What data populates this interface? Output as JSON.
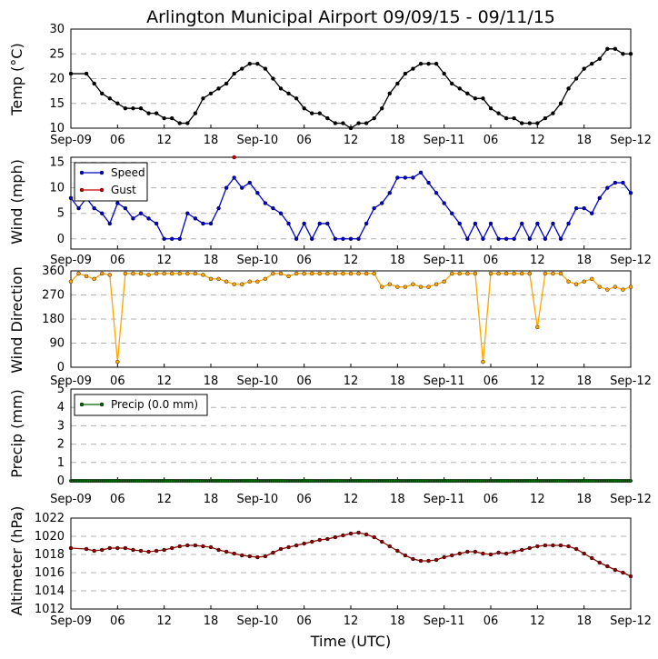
{
  "title": "Arlington Municipal Airport 09/09/15 - 09/11/15",
  "xlabel": "Time (UTC)",
  "x_tick_labels": [
    "Sep-09",
    "06",
    "12",
    "18",
    "Sep-10",
    "06",
    "12",
    "18",
    "Sep-11",
    "06",
    "12",
    "18",
    "Sep-12"
  ],
  "chart_data": [
    {
      "type": "line",
      "ylabel": "Temp ($^\\circ$C)",
      "ylabel_text": "Temp (°C)",
      "ylim": [
        10,
        30
      ],
      "yticks": [
        10,
        15,
        20,
        25,
        30
      ],
      "series": [
        {
          "name": "Temp",
          "color": "#000000",
          "hours": [
            0,
            2,
            3,
            4,
            5,
            6,
            7,
            8,
            9,
            10,
            11,
            12,
            13,
            14,
            15,
            16,
            17,
            18,
            19,
            20,
            21,
            22,
            23,
            24,
            25,
            26,
            27,
            28,
            29,
            30,
            31,
            32,
            33,
            34,
            35,
            36,
            37,
            38,
            39,
            40,
            41,
            42,
            43,
            44,
            45,
            46,
            47,
            48,
            49,
            50,
            51,
            52,
            53,
            54,
            55,
            56,
            57,
            58,
            59,
            60,
            61,
            62,
            63,
            64,
            65,
            66,
            67,
            68,
            69,
            70,
            71,
            72
          ],
          "values": [
            21,
            21,
            19,
            17,
            16,
            15,
            14,
            14,
            14,
            13,
            13,
            12,
            12,
            11,
            11,
            13,
            16,
            17,
            18,
            19,
            21,
            22,
            23,
            23,
            22,
            20,
            18,
            17,
            16,
            14,
            13,
            13,
            12,
            11,
            11,
            10,
            11,
            11,
            12,
            14,
            17,
            19,
            21,
            22,
            23,
            23,
            23,
            21,
            19,
            18,
            17,
            16,
            16,
            14,
            13,
            12,
            12,
            11,
            11,
            11,
            12,
            13,
            15,
            18,
            20,
            22,
            23,
            24,
            26,
            26,
            25,
            25
          ]
        }
      ]
    },
    {
      "type": "line",
      "ylabel": "Wind (mph)",
      "ylim": [
        -2,
        16
      ],
      "yticks": [
        0,
        5,
        10,
        15
      ],
      "legend": "top-left",
      "series": [
        {
          "name": "Speed",
          "color": "#0000cc",
          "hours": [
            0,
            1,
            2,
            3,
            4,
            5,
            6,
            7,
            8,
            9,
            10,
            11,
            12,
            13,
            14,
            15,
            16,
            17,
            18,
            19,
            20,
            21,
            22,
            23,
            24,
            25,
            26,
            27,
            28,
            29,
            30,
            31,
            32,
            33,
            34,
            35,
            36,
            37,
            38,
            39,
            40,
            41,
            42,
            43,
            44,
            45,
            46,
            47,
            48,
            49,
            50,
            51,
            52,
            53,
            54,
            55,
            56,
            57,
            58,
            59,
            60,
            61,
            62,
            63,
            64,
            65,
            66,
            67,
            68,
            69,
            70,
            71,
            72
          ],
          "values": [
            8,
            6,
            8,
            6,
            5,
            3,
            7,
            6,
            4,
            5,
            4,
            3,
            0,
            0,
            0,
            5,
            4,
            3,
            3,
            6,
            10,
            12,
            10,
            11,
            9,
            7,
            6,
            5,
            3,
            0,
            3,
            0,
            3,
            3,
            0,
            0,
            0,
            0,
            3,
            6,
            7,
            9,
            12,
            12,
            12,
            13,
            11,
            9,
            7,
            5,
            3,
            0,
            3,
            0,
            3,
            0,
            0,
            0,
            3,
            0,
            3,
            0,
            3,
            0,
            3,
            6,
            6,
            5,
            8,
            10,
            11,
            11,
            9
          ]
        },
        {
          "name": "Gust",
          "color": "#cc0000",
          "hours": [
            21
          ],
          "values": [
            16
          ]
        }
      ]
    },
    {
      "type": "line",
      "ylabel": "Wind Direction",
      "ylim": [
        0,
        360
      ],
      "yticks": [
        0,
        90,
        180,
        270,
        360
      ],
      "series": [
        {
          "name": "Direction",
          "color": "#ffa500",
          "hours": [
            0,
            1,
            2,
            3,
            4,
            5,
            6,
            7,
            8,
            9,
            10,
            11,
            12,
            13,
            14,
            15,
            16,
            17,
            18,
            19,
            20,
            21,
            22,
            23,
            24,
            25,
            26,
            27,
            28,
            29,
            30,
            31,
            32,
            33,
            34,
            35,
            36,
            37,
            38,
            39,
            40,
            41,
            42,
            43,
            44,
            45,
            46,
            47,
            48,
            49,
            50,
            51,
            52,
            53,
            54,
            55,
            56,
            57,
            58,
            59,
            60,
            61,
            62,
            63,
            64,
            65,
            66,
            67,
            68,
            69,
            70,
            71,
            72
          ],
          "values": [
            320,
            350,
            340,
            330,
            350,
            345,
            20,
            350,
            350,
            350,
            345,
            350,
            350,
            350,
            350,
            350,
            350,
            345,
            330,
            330,
            320,
            310,
            310,
            320,
            320,
            330,
            350,
            350,
            340,
            350,
            350,
            350,
            350,
            350,
            350,
            350,
            350,
            350,
            350,
            350,
            300,
            310,
            300,
            300,
            310,
            300,
            300,
            310,
            320,
            350,
            350,
            350,
            350,
            20,
            350,
            350,
            350,
            350,
            350,
            350,
            150,
            350,
            350,
            350,
            320,
            310,
            320,
            330,
            300,
            290,
            300,
            290,
            300
          ]
        }
      ]
    },
    {
      "type": "line",
      "ylabel": "Precip (mm)",
      "ylim": [
        0,
        5
      ],
      "yticks": [
        0,
        1,
        2,
        3,
        4,
        5
      ],
      "legend": "top-left",
      "series": [
        {
          "name": "Precip (0.0 mm)",
          "color": "#006600",
          "hours": [
            0,
            72
          ],
          "values": [
            0,
            0
          ]
        }
      ]
    },
    {
      "type": "line",
      "ylabel": "Altimeter (hPa)",
      "ylim": [
        1012,
        1022
      ],
      "yticks": [
        1012,
        1014,
        1016,
        1018,
        1020,
        1022
      ],
      "series": [
        {
          "name": "Altimeter",
          "color": "#8b0000",
          "hours": [
            0,
            2,
            3,
            4,
            5,
            6,
            7,
            8,
            9,
            10,
            11,
            12,
            13,
            14,
            15,
            16,
            17,
            18,
            19,
            20,
            21,
            22,
            23,
            24,
            25,
            26,
            27,
            28,
            29,
            30,
            31,
            32,
            33,
            34,
            35,
            36,
            37,
            38,
            39,
            40,
            41,
            42,
            43,
            44,
            45,
            46,
            47,
            48,
            49,
            50,
            51,
            52,
            53,
            54,
            55,
            56,
            57,
            58,
            59,
            60,
            61,
            62,
            63,
            64,
            65,
            66,
            67,
            68,
            69,
            70,
            71,
            72
          ],
          "values": [
            1018.7,
            1018.6,
            1018.4,
            1018.5,
            1018.7,
            1018.7,
            1018.7,
            1018.5,
            1018.4,
            1018.3,
            1018.4,
            1018.5,
            1018.7,
            1018.9,
            1019.0,
            1019.0,
            1018.9,
            1018.8,
            1018.5,
            1018.3,
            1018.1,
            1017.9,
            1017.8,
            1017.7,
            1017.8,
            1018.2,
            1018.6,
            1018.8,
            1019.0,
            1019.2,
            1019.4,
            1019.6,
            1019.7,
            1019.9,
            1020.1,
            1020.3,
            1020.4,
            1020.2,
            1019.9,
            1019.4,
            1018.9,
            1018.4,
            1017.9,
            1017.5,
            1017.3,
            1017.3,
            1017.4,
            1017.7,
            1017.9,
            1018.1,
            1018.3,
            1018.3,
            1018.1,
            1018.0,
            1018.2,
            1018.1,
            1018.3,
            1018.5,
            1018.7,
            1018.9,
            1019.0,
            1019.0,
            1019.0,
            1018.9,
            1018.6,
            1018.1,
            1017.6,
            1017.1,
            1016.7,
            1016.3,
            1016.0,
            1015.6
          ]
        }
      ]
    }
  ]
}
